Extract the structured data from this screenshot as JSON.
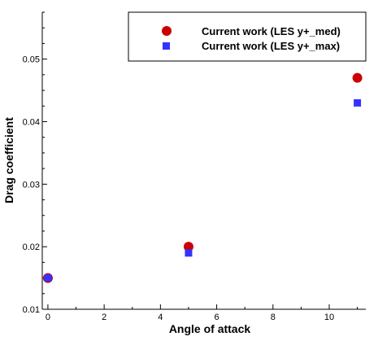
{
  "chart_data": {
    "type": "scatter",
    "xlabel": "Angle of attack",
    "ylabel": "Drag coefficient",
    "xlim": [
      -0.2,
      11.3
    ],
    "ylim": [
      0.01,
      0.0575
    ],
    "xticks": [
      0,
      2,
      4,
      6,
      8,
      10
    ],
    "yticks": [
      0.01,
      0.02,
      0.03,
      0.04,
      0.05
    ],
    "xtick_labels": [
      "0",
      "2",
      "4",
      "6",
      "8",
      "10"
    ],
    "ytick_labels": [
      "0.01",
      "0.02",
      "0.03",
      "0.04",
      "0.05"
    ],
    "grid": false,
    "legend_position": "top-right",
    "series": [
      {
        "name": "Current work (LES y+_med)",
        "marker": "circle",
        "color": "#cc0000",
        "x": [
          0,
          5,
          11
        ],
        "y": [
          0.015,
          0.02,
          0.047
        ]
      },
      {
        "name": "Current work (LES y+_max)",
        "marker": "square",
        "color": "#3333ff",
        "x": [
          0,
          5,
          11
        ],
        "y": [
          0.015,
          0.019,
          0.043
        ]
      }
    ]
  }
}
